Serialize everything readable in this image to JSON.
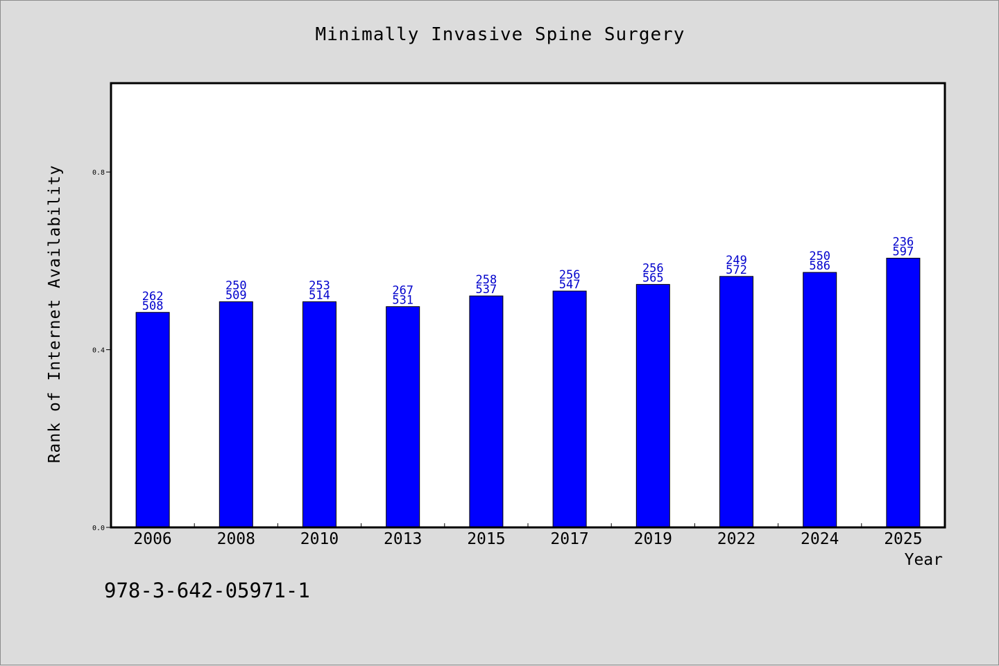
{
  "colors": {
    "background": "#dcdcdc",
    "plot_bg": "#ffffff",
    "bar": "#0000ff",
    "bar_label": "#0000cc",
    "axis": "#000000"
  },
  "footer": {
    "isbn": "978-3-642-05971-1"
  },
  "chart_data": {
    "type": "bar",
    "title": "Minimally Invasive Spine Surgery",
    "xlabel": "Year",
    "ylabel": "Rank of Internet Availability",
    "categories": [
      "2006",
      "2008",
      "2010",
      "2013",
      "2015",
      "2017",
      "2019",
      "2022",
      "2024",
      "2025"
    ],
    "series": [
      {
        "values": [
          0.484,
          0.508,
          0.508,
          0.497,
          0.521,
          0.532,
          0.547,
          0.565,
          0.574,
          0.606
        ]
      }
    ],
    "bar_labels_top": [
      "262",
      "250",
      "253",
      "267",
      "258",
      "256",
      "256",
      "249",
      "250",
      "236"
    ],
    "bar_labels_bottom": [
      "508",
      "509",
      "514",
      "531",
      "537",
      "547",
      "565",
      "572",
      "586",
      "597"
    ],
    "ylim": [
      0,
      1.0
    ],
    "yticks": [
      0.0,
      0.4,
      0.8
    ],
    "ytick_labels": [
      "0.0",
      "0.4",
      "0.8"
    ],
    "grid": false,
    "legend": "none"
  }
}
